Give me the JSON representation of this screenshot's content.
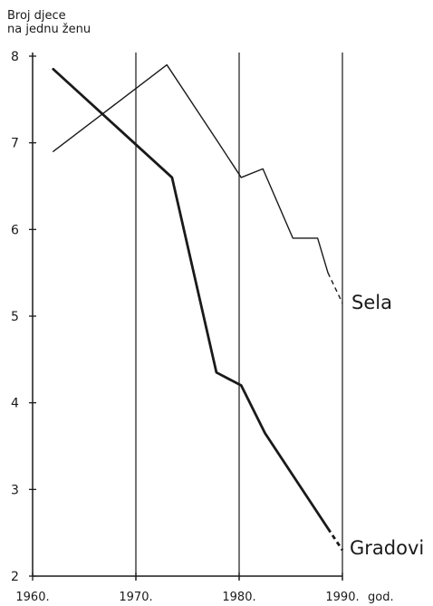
{
  "chart_data": {
    "type": "line",
    "ylabel": [
      "Broj djece",
      "na jednu ženu"
    ],
    "xlabel": "god.",
    "ylim": [
      2,
      8
    ],
    "xlim": [
      1960,
      1990
    ],
    "y_ticks": [
      "2",
      "3",
      "4",
      "5",
      "6",
      "7",
      "8"
    ],
    "x_ticks": [
      "1960.",
      "1970.",
      "1980.",
      "1990."
    ],
    "grid_x": [
      1970,
      1980,
      1990
    ],
    "series": [
      {
        "name": "Sela",
        "x": [
          1962,
          1973,
          1978,
          1980.2,
          1982.3,
          1985.2,
          1987.6,
          1988.6,
          1990
        ],
        "y": [
          6.9,
          7.9,
          7.0,
          6.6,
          6.7,
          5.9,
          5.9,
          5.5,
          5.15
        ],
        "dashed_from_index": 7
      },
      {
        "name": "Gradovi",
        "x": [
          1962,
          1973.5,
          1977.8,
          1980.2,
          1982.5,
          1988.6,
          1990
        ],
        "y": [
          7.85,
          6.6,
          4.35,
          4.2,
          3.65,
          2.55,
          2.3
        ],
        "dashed_from_index": 5
      }
    ]
  }
}
